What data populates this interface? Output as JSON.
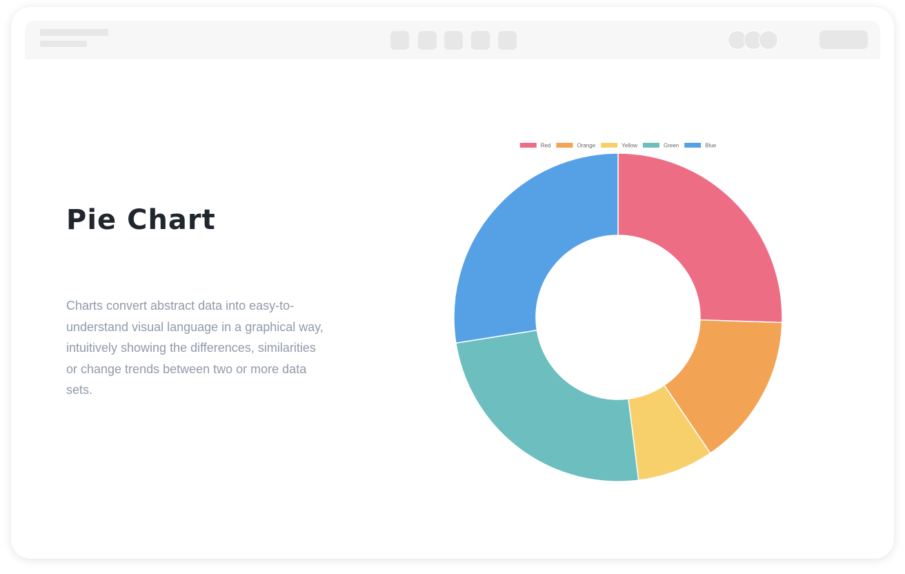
{
  "page": {
    "title": "Pie Chart",
    "description": "Charts convert abstract data into easy-to-understand visual language in a graphical way, intuitively showing the differences, similarities or change trends between two or more data sets."
  },
  "toolbar": {
    "buttons": [
      "tool-1",
      "tool-2",
      "tool-3",
      "tool-4",
      "tool-5"
    ],
    "avatars": [
      "avatar-1",
      "avatar-2",
      "avatar-3"
    ]
  },
  "chart_data": {
    "type": "pie",
    "variant": "doughnut",
    "categories": [
      "Red",
      "Orange",
      "Yellow",
      "Green",
      "Blue"
    ],
    "values": [
      25.5,
      15,
      7.5,
      24.5,
      27.5
    ],
    "colors": [
      "#ed6d85",
      "#f2a454",
      "#f7d06b",
      "#6cbebf",
      "#56a0e5"
    ],
    "title": "",
    "legend": "top-center"
  }
}
